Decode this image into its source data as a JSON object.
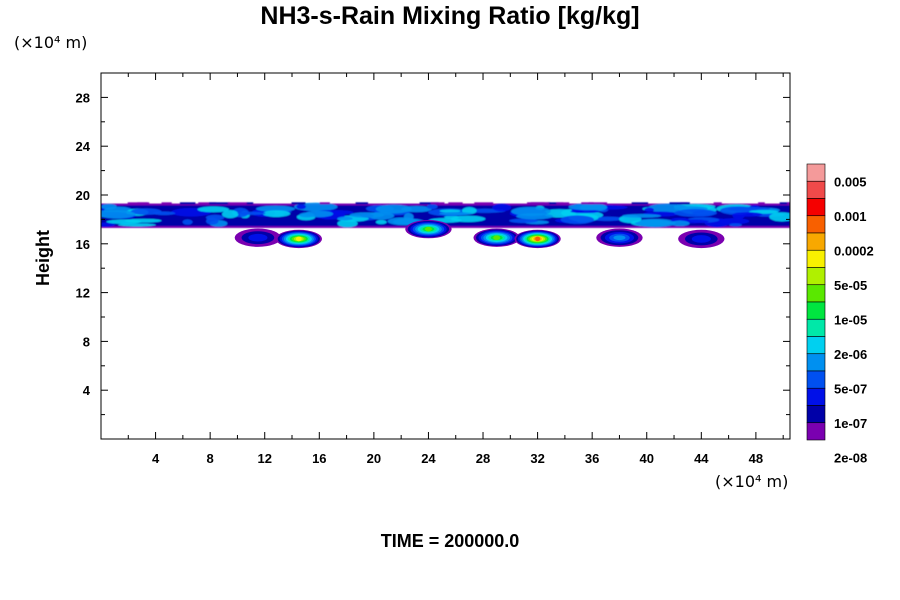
{
  "title": "NH3-s-Rain Mixing Ratio [kg/kg]",
  "y_unit": "(×10⁴ m)",
  "x_unit": "(×10⁴ m)",
  "time_label": "TIME = 200000.0",
  "chart_data": {
    "type": "heatmap",
    "title": "NH3-s-Rain Mixing Ratio [kg/kg]",
    "xlabel": "",
    "ylabel": "Height",
    "xlim": [
      0,
      50.5
    ],
    "ylim": [
      0,
      30
    ],
    "x_ticks": [
      4,
      8,
      12,
      16,
      20,
      24,
      28,
      32,
      36,
      40,
      44,
      48
    ],
    "y_ticks": [
      4,
      8,
      12,
      16,
      20,
      24,
      28
    ],
    "colorbar": {
      "labels": [
        "0.005",
        "0.001",
        "0.0002",
        "5e-05",
        "1e-05",
        "2e-06",
        "5e-07",
        "1e-07",
        "2e-08"
      ],
      "colors": [
        "#f49a9a",
        "#f04a4a",
        "#f50000",
        "#f86000",
        "#f8a800",
        "#f8f000",
        "#b0f000",
        "#5ae800",
        "#00e640",
        "#00e8a8",
        "#00d0f0",
        "#0090f0",
        "#0050f0",
        "#0010e8",
        "#0000a8",
        "#7a00b0"
      ]
    },
    "layer": {
      "y_bottom": 17.3,
      "y_top": 19.3
    },
    "cells": [
      {
        "x": 11.5,
        "y": 16.5,
        "peak": "5e-07"
      },
      {
        "x": 14.5,
        "y": 16.4,
        "peak": "0.0002"
      },
      {
        "x": 24.0,
        "y": 17.2,
        "peak": "5e-05"
      },
      {
        "x": 29.0,
        "y": 16.5,
        "peak": "5e-05"
      },
      {
        "x": 32.0,
        "y": 16.4,
        "peak": "0.001"
      },
      {
        "x": 38.0,
        "y": 16.5,
        "peak": "2e-06"
      },
      {
        "x": 44.0,
        "y": 16.4,
        "peak": "5e-07"
      }
    ]
  }
}
